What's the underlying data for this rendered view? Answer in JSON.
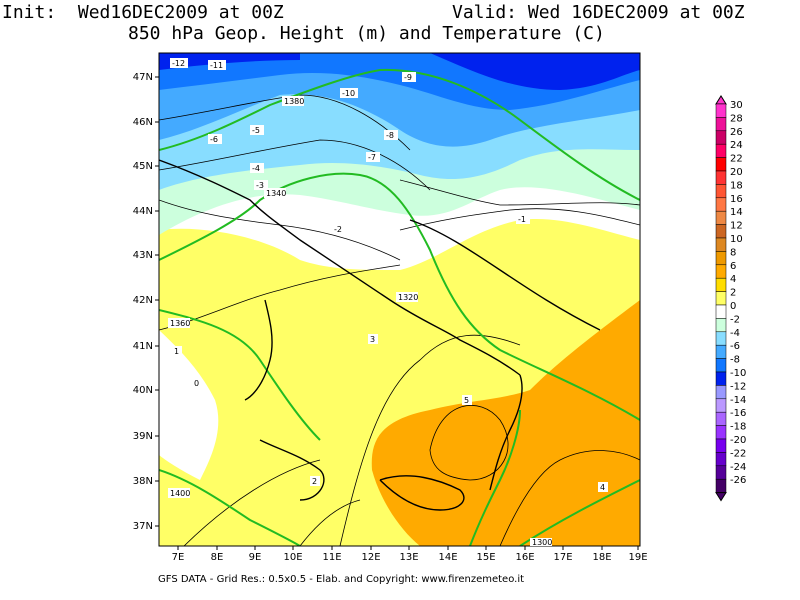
{
  "header": {
    "init": "Init:  Wed16DEC2009 at 00Z",
    "valid": "Valid: Wed 16DEC2009 at 00Z",
    "subtitle": "850 hPa Geop. Height (m) and Temperature (C)"
  },
  "footer": "GFS DATA - Grid Res.: 0.5x0.5 - Elab. and Copyright: www.firenzemeteo.it",
  "axes": {
    "lat_labels": [
      "47N",
      "46N",
      "45N",
      "44N",
      "43N",
      "42N",
      "41N",
      "40N",
      "39N",
      "38N",
      "37N"
    ],
    "lon_labels": [
      "7E",
      "8E",
      "9E",
      "10E",
      "11E",
      "12E",
      "13E",
      "14E",
      "15E",
      "16E",
      "17E",
      "18E",
      "19E"
    ]
  },
  "legend": {
    "values": [
      "30",
      "28",
      "26",
      "24",
      "22",
      "20",
      "18",
      "16",
      "14",
      "12",
      "10",
      "8",
      "6",
      "4",
      "2",
      "0",
      "-2",
      "-4",
      "-6",
      "-8",
      "-10",
      "-12",
      "-14",
      "-16",
      "-18",
      "-20",
      "-22",
      "-24",
      "-26"
    ],
    "colors": [
      "#ff33cc",
      "#ee1199",
      "#cc0066",
      "#ff0066",
      "#ff0000",
      "#ff3333",
      "#ff5533",
      "#ff7744",
      "#ee8844",
      "#cc6622",
      "#dd8822",
      "#ee9900",
      "#ffaa00",
      "#ffdd00",
      "#ffff66",
      "#ffffff",
      "#ccffdd",
      "#88ddff",
      "#44aaff",
      "#1177ff",
      "#0022ee",
      "#9999ff",
      "#bb99ff",
      "#aa66ff",
      "#9933ff",
      "#7700ee",
      "#6600cc",
      "#550099",
      "#440066"
    ]
  },
  "contour_labels": {
    "temperature": [
      "-12",
      "-11",
      "-10",
      "-9",
      "-8",
      "-7",
      "-6",
      "-5",
      "-4",
      "-3",
      "-2",
      "-1",
      "0",
      "1",
      "2",
      "3",
      "4",
      "5"
    ],
    "geopotential": [
      "1300",
      "1320",
      "1340",
      "1360",
      "1380",
      "1400"
    ]
  },
  "colors": {
    "geopotential_line": "#22bb22",
    "temperature_line": "#000000"
  }
}
